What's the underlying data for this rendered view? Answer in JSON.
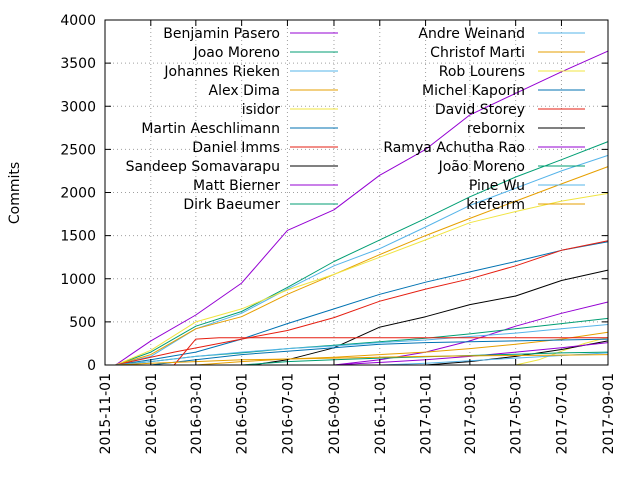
{
  "chart_data": {
    "type": "line",
    "ylabel": "Commits",
    "xlabel": "",
    "title": "",
    "ylim": [
      0,
      4000
    ],
    "xlim": [
      "2015-11-01",
      "2017-09-01"
    ],
    "y_ticks": [
      0,
      500,
      1000,
      1500,
      2000,
      2500,
      3000,
      3500,
      4000
    ],
    "x_ticks": [
      "2015-11-01",
      "2016-01-01",
      "2016-03-01",
      "2016-05-01",
      "2016-07-01",
      "2016-09-01",
      "2016-11-01",
      "2017-01-01",
      "2017-03-01",
      "2017-05-01",
      "2017-07-01",
      "2017-09-01"
    ],
    "grid": true,
    "legend_position": "top, two columns",
    "series": [
      {
        "name": "Benjamin Pasero",
        "color": "#9400d3",
        "points": [
          [
            "2015-11-15",
            0
          ],
          [
            "2016-01-01",
            280
          ],
          [
            "2016-03-01",
            580
          ],
          [
            "2016-05-01",
            950
          ],
          [
            "2016-07-01",
            1560
          ],
          [
            "2016-09-01",
            1800
          ],
          [
            "2016-11-01",
            2200
          ],
          [
            "2017-01-01",
            2500
          ],
          [
            "2017-03-01",
            2900
          ],
          [
            "2017-05-01",
            3150
          ],
          [
            "2017-07-01",
            3400
          ],
          [
            "2017-09-01",
            3640
          ]
        ]
      },
      {
        "name": "Joao Moreno",
        "color": "#009e73",
        "points": [
          [
            "2015-11-15",
            0
          ],
          [
            "2016-01-01",
            150
          ],
          [
            "2016-03-01",
            450
          ],
          [
            "2016-05-01",
            620
          ],
          [
            "2016-07-01",
            900
          ],
          [
            "2016-09-01",
            1200
          ],
          [
            "2016-11-01",
            1450
          ],
          [
            "2017-01-01",
            1700
          ],
          [
            "2017-03-01",
            1950
          ],
          [
            "2017-05-01",
            2180
          ],
          [
            "2017-07-01",
            2380
          ],
          [
            "2017-09-01",
            2590
          ]
        ]
      },
      {
        "name": "Johannes Rieken",
        "color": "#56b4e9",
        "points": [
          [
            "2015-11-15",
            0
          ],
          [
            "2016-01-01",
            100
          ],
          [
            "2016-03-01",
            420
          ],
          [
            "2016-05-01",
            600
          ],
          [
            "2016-07-01",
            880
          ],
          [
            "2016-09-01",
            1150
          ],
          [
            "2016-11-01",
            1350
          ],
          [
            "2017-01-01",
            1600
          ],
          [
            "2017-03-01",
            1850
          ],
          [
            "2017-05-01",
            2050
          ],
          [
            "2017-07-01",
            2250
          ],
          [
            "2017-09-01",
            2430
          ]
        ]
      },
      {
        "name": "Alex Dima",
        "color": "#e69f00",
        "points": [
          [
            "2015-11-15",
            0
          ],
          [
            "2016-01-01",
            120
          ],
          [
            "2016-03-01",
            420
          ],
          [
            "2016-05-01",
            560
          ],
          [
            "2016-07-01",
            820
          ],
          [
            "2016-09-01",
            1050
          ],
          [
            "2016-11-01",
            1280
          ],
          [
            "2017-01-01",
            1500
          ],
          [
            "2017-03-01",
            1700
          ],
          [
            "2017-05-01",
            1900
          ],
          [
            "2017-07-01",
            2100
          ],
          [
            "2017-09-01",
            2300
          ]
        ]
      },
      {
        "name": "isidor",
        "color": "#f0e442",
        "points": [
          [
            "2015-11-15",
            0
          ],
          [
            "2016-01-01",
            170
          ],
          [
            "2016-03-01",
            500
          ],
          [
            "2016-05-01",
            650
          ],
          [
            "2016-07-01",
            870
          ],
          [
            "2016-09-01",
            1050
          ],
          [
            "2016-11-01",
            1250
          ],
          [
            "2017-01-01",
            1450
          ],
          [
            "2017-03-01",
            1650
          ],
          [
            "2017-05-01",
            1780
          ],
          [
            "2017-07-01",
            1900
          ],
          [
            "2017-09-01",
            1990
          ]
        ]
      },
      {
        "name": "Martin Aeschlimann",
        "color": "#0072b2",
        "points": [
          [
            "2015-11-15",
            0
          ],
          [
            "2016-01-01",
            60
          ],
          [
            "2016-03-01",
            150
          ],
          [
            "2016-05-01",
            300
          ],
          [
            "2016-07-01",
            480
          ],
          [
            "2016-09-01",
            650
          ],
          [
            "2016-11-01",
            820
          ],
          [
            "2017-01-01",
            960
          ],
          [
            "2017-03-01",
            1080
          ],
          [
            "2017-05-01",
            1200
          ],
          [
            "2017-07-01",
            1330
          ],
          [
            "2017-09-01",
            1430
          ]
        ]
      },
      {
        "name": "Daniel Imms",
        "color": "#e51e10",
        "points": [
          [
            "2015-11-15",
            0
          ],
          [
            "2016-02-01",
            150
          ],
          [
            "2016-05-01",
            300
          ],
          [
            "2016-07-01",
            400
          ],
          [
            "2016-09-01",
            550
          ],
          [
            "2016-11-01",
            740
          ],
          [
            "2017-01-01",
            880
          ],
          [
            "2017-03-01",
            1000
          ],
          [
            "2017-05-01",
            1150
          ],
          [
            "2017-07-01",
            1330
          ],
          [
            "2017-09-01",
            1440
          ]
        ]
      },
      {
        "name": "Sandeep Somavarapu",
        "color": "#000000",
        "points": [
          [
            "2016-05-15",
            0
          ],
          [
            "2016-07-01",
            60
          ],
          [
            "2016-09-01",
            200
          ],
          [
            "2016-11-01",
            440
          ],
          [
            "2017-01-01",
            560
          ],
          [
            "2017-03-01",
            700
          ],
          [
            "2017-05-01",
            800
          ],
          [
            "2017-07-01",
            980
          ],
          [
            "2017-09-01",
            1100
          ]
        ]
      },
      {
        "name": "Matt Bierner",
        "color": "#9400d3",
        "points": [
          [
            "2016-09-01",
            0
          ],
          [
            "2016-11-01",
            60
          ],
          [
            "2017-01-01",
            150
          ],
          [
            "2017-03-01",
            280
          ],
          [
            "2017-05-01",
            450
          ],
          [
            "2017-07-01",
            600
          ],
          [
            "2017-09-01",
            730
          ]
        ]
      },
      {
        "name": "Dirk Baeumer",
        "color": "#009e73",
        "points": [
          [
            "2015-11-15",
            0
          ],
          [
            "2016-01-01",
            40
          ],
          [
            "2016-03-01",
            100
          ],
          [
            "2016-05-01",
            140
          ],
          [
            "2016-07-01",
            190
          ],
          [
            "2016-09-01",
            230
          ],
          [
            "2016-11-01",
            270
          ],
          [
            "2017-01-01",
            310
          ],
          [
            "2017-03-01",
            360
          ],
          [
            "2017-05-01",
            420
          ],
          [
            "2017-07-01",
            480
          ],
          [
            "2017-09-01",
            540
          ]
        ]
      },
      {
        "name": "Andre Weinand",
        "color": "#56b4e9",
        "points": [
          [
            "2015-11-15",
            0
          ],
          [
            "2016-01-01",
            40
          ],
          [
            "2016-03-01",
            100
          ],
          [
            "2016-05-01",
            150
          ],
          [
            "2016-07-01",
            190
          ],
          [
            "2016-09-01",
            220
          ],
          [
            "2016-11-01",
            260
          ],
          [
            "2017-01-01",
            290
          ],
          [
            "2017-03-01",
            330
          ],
          [
            "2017-05-01",
            370
          ],
          [
            "2017-07-01",
            420
          ],
          [
            "2017-09-01",
            470
          ]
        ]
      },
      {
        "name": "Christof Marti",
        "color": "#e69f00",
        "points": [
          [
            "2016-03-01",
            0
          ],
          [
            "2016-05-01",
            40
          ],
          [
            "2016-07-01",
            70
          ],
          [
            "2016-09-01",
            90
          ],
          [
            "2016-11-01",
            120
          ],
          [
            "2017-01-01",
            150
          ],
          [
            "2017-03-01",
            190
          ],
          [
            "2017-05-01",
            240
          ],
          [
            "2017-07-01",
            300
          ],
          [
            "2017-09-01",
            380
          ]
        ]
      },
      {
        "name": "Rob Lourens",
        "color": "#f0e442",
        "points": [
          [
            "2017-05-01",
            0
          ],
          [
            "2017-06-01",
            60
          ],
          [
            "2017-07-01",
            160
          ],
          [
            "2017-08-01",
            250
          ],
          [
            "2017-09-01",
            320
          ]
        ]
      },
      {
        "name": "Michel Kaporin",
        "color": "#0072b2",
        "points": [
          [
            "2016-01-01",
            0
          ],
          [
            "2016-03-01",
            60
          ],
          [
            "2016-05-01",
            120
          ],
          [
            "2016-07-01",
            160
          ],
          [
            "2016-09-01",
            200
          ],
          [
            "2016-11-01",
            240
          ],
          [
            "2017-01-01",
            260
          ],
          [
            "2017-03-01",
            270
          ],
          [
            "2017-05-01",
            280
          ],
          [
            "2017-07-01",
            290
          ],
          [
            "2017-09-01",
            300
          ]
        ]
      },
      {
        "name": "David Storey",
        "color": "#e51e10",
        "points": [
          [
            "2016-02-01",
            0
          ],
          [
            "2016-03-01",
            300
          ],
          [
            "2016-04-01",
            315
          ],
          [
            "2017-09-01",
            315
          ]
        ]
      },
      {
        "name": "rebornix",
        "color": "#000000",
        "points": [
          [
            "2017-01-01",
            0
          ],
          [
            "2017-03-01",
            40
          ],
          [
            "2017-05-01",
            100
          ],
          [
            "2017-07-01",
            180
          ],
          [
            "2017-09-01",
            280
          ]
        ]
      },
      {
        "name": "Ramya Achutha Rao",
        "color": "#9400d3",
        "points": [
          [
            "2016-09-01",
            0
          ],
          [
            "2016-11-01",
            30
          ],
          [
            "2017-01-01",
            60
          ],
          [
            "2017-03-01",
            100
          ],
          [
            "2017-05-01",
            150
          ],
          [
            "2017-07-01",
            200
          ],
          [
            "2017-09-01",
            260
          ]
        ]
      },
      {
        "name": "João Moreno",
        "color": "#009e73",
        "points": [
          [
            "2016-05-01",
            0
          ],
          [
            "2016-07-01",
            40
          ],
          [
            "2016-09-01",
            60
          ],
          [
            "2016-11-01",
            80
          ],
          [
            "2017-01-01",
            95
          ],
          [
            "2017-03-01",
            110
          ],
          [
            "2017-05-01",
            125
          ],
          [
            "2017-07-01",
            140
          ],
          [
            "2017-09-01",
            150
          ]
        ]
      },
      {
        "name": "Pine Wu",
        "color": "#56b4e9",
        "points": [
          [
            "2016-11-01",
            0
          ],
          [
            "2017-01-01",
            20
          ],
          [
            "2017-03-01",
            50
          ],
          [
            "2017-05-01",
            80
          ],
          [
            "2017-07-01",
            110
          ],
          [
            "2017-09-01",
            140
          ]
        ]
      },
      {
        "name": "kieferrm",
        "color": "#e69f00",
        "points": [
          [
            "2015-11-15",
            0
          ],
          [
            "2016-01-01",
            20
          ],
          [
            "2016-03-01",
            40
          ],
          [
            "2016-05-01",
            60
          ],
          [
            "2016-07-01",
            70
          ],
          [
            "2016-09-01",
            80
          ],
          [
            "2016-11-01",
            90
          ],
          [
            "2017-01-01",
            100
          ],
          [
            "2017-03-01",
            105
          ],
          [
            "2017-05-01",
            110
          ],
          [
            "2017-07-01",
            115
          ],
          [
            "2017-09-01",
            120
          ]
        ]
      }
    ]
  }
}
